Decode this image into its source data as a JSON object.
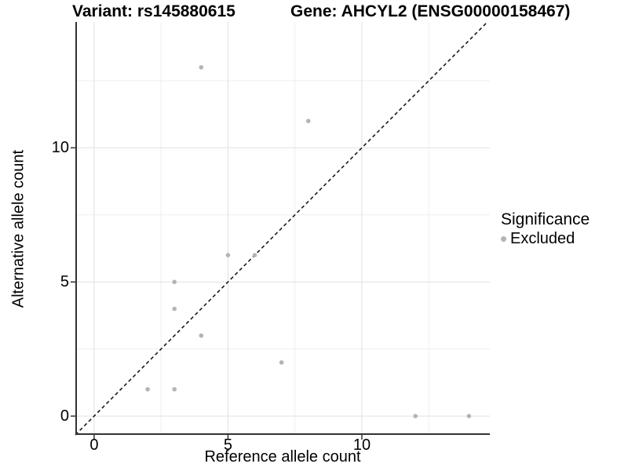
{
  "header": {
    "variant_title": "Variant: rs145880615",
    "gene_title": "Gene: AHCYL2 (ENSG00000158467)"
  },
  "chart_data": {
    "type": "scatter",
    "title": "Variant: rs145880615 / Gene: AHCYL2 (ENSG00000158467)",
    "xlabel": "Reference allele count",
    "ylabel": "Alternative allele count",
    "xlim": [
      -0.7,
      14.78
    ],
    "ylim": [
      -0.7,
      14.69
    ],
    "x_major_ticks": [
      0,
      5,
      10
    ],
    "y_major_ticks": [
      0,
      5,
      10
    ],
    "x_minor_gridlines": [
      2.5,
      7.5,
      12.5
    ],
    "y_minor_gridlines": [
      2.5,
      7.5,
      12.5
    ],
    "grid": true,
    "legend_position": "right",
    "identity_line": {
      "equation": "y = x",
      "style": "dashed"
    },
    "series": [
      {
        "name": "Excluded",
        "marker": "circle",
        "color": "#b4b4b4",
        "points": [
          [
            2,
            1
          ],
          [
            3,
            1
          ],
          [
            3,
            4
          ],
          [
            3,
            5
          ],
          [
            4,
            3
          ],
          [
            4,
            13
          ],
          [
            5,
            6
          ],
          [
            6,
            6
          ],
          [
            7,
            2
          ],
          [
            8,
            11
          ],
          [
            12,
            0
          ],
          [
            14,
            0
          ]
        ]
      }
    ]
  },
  "legend": {
    "title": "Significance",
    "items": [
      {
        "label": "Excluded",
        "color": "#b4b4b4",
        "marker": "circle"
      }
    ]
  },
  "colors": {
    "background": "#ffffff",
    "text": "#000000",
    "point": "#b4b4b4",
    "grid_major": "#e4e4e4",
    "grid_minor": "#efefef",
    "axis_line": "#333333",
    "identity_line": "#1a1a1a"
  }
}
